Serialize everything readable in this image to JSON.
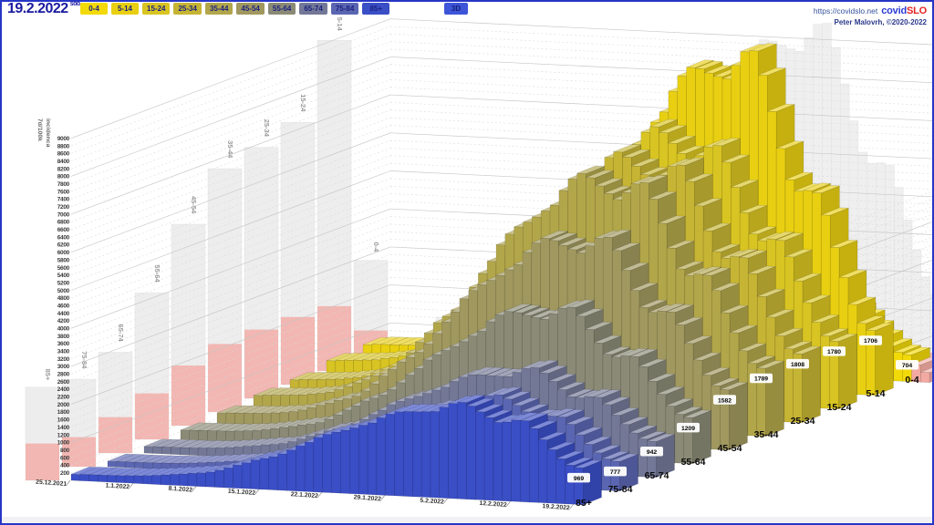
{
  "toolbar": {
    "date": "19.2.2022",
    "weekday": "sob",
    "mode_button": "3D"
  },
  "header_right": {
    "url": "https://covidslo.net",
    "brand_covid": "covid",
    "brand_slo": "SLO",
    "credit": "Peter Malovrh, ©2020-2022"
  },
  "chart_data": {
    "type": "bar",
    "projection": "3d",
    "y_axis": {
      "title_1": "7d/100k",
      "title_2": "incidenca",
      "min": 200,
      "max": 9000,
      "step": 200
    },
    "x_axis": {
      "dates": [
        "25.12.2021",
        "1.1.2022",
        "8.1.2022",
        "15.1.2022",
        "22.1.2022",
        "29.1.2022",
        "5.2.2022",
        "12.2.2022",
        "19.2.2022"
      ]
    },
    "days": 57,
    "series": [
      {
        "label": "0-4",
        "color": "#F2D908",
        "weekly_values": [
          250,
          300,
          500,
          900,
          1600,
          2300,
          2550,
          1800,
          704
        ],
        "last_value": 704
      },
      {
        "label": "5-14",
        "color": "#E8CF12",
        "weekly_values": [
          680,
          800,
          1400,
          3100,
          5700,
          8000,
          8700,
          5200,
          1706
        ],
        "last_value": 1706
      },
      {
        "label": "15-24",
        "color": "#D8C422",
        "weekly_values": [
          620,
          780,
          1450,
          3200,
          5400,
          6900,
          6600,
          4300,
          1780
        ],
        "last_value": 1780
      },
      {
        "label": "25-34",
        "color": "#C6B434",
        "weekly_values": [
          480,
          620,
          1250,
          2900,
          5100,
          6600,
          6450,
          4200,
          1808
        ],
        "last_value": 1808
      },
      {
        "label": "35-44",
        "color": "#B2A64A",
        "weekly_values": [
          430,
          560,
          1150,
          2700,
          4900,
          6400,
          6350,
          4100,
          1789
        ],
        "last_value": 1789
      },
      {
        "label": "45-54",
        "color": "#A0985E",
        "weekly_values": [
          330,
          420,
          850,
          2000,
          3800,
          5100,
          5300,
          3500,
          1582
        ],
        "last_value": 1582
      },
      {
        "label": "55-64",
        "color": "#8A8A76",
        "weekly_values": [
          240,
          300,
          550,
          1300,
          2500,
          3600,
          3850,
          2700,
          1209
        ],
        "last_value": 1209
      },
      {
        "label": "65-74",
        "color": "#737897",
        "weekly_values": [
          170,
          210,
          380,
          850,
          1650,
          2350,
          2650,
          2000,
          942
        ],
        "last_value": 942
      },
      {
        "label": "75-84",
        "color": "#5B66B2",
        "weekly_values": [
          140,
          170,
          300,
          650,
          1250,
          1850,
          2300,
          1850,
          777
        ],
        "last_value": 777
      },
      {
        "label": "85+",
        "color": "#3A4EC6",
        "weekly_values": [
          160,
          200,
          350,
          800,
          1500,
          2100,
          2450,
          2100,
          969
        ],
        "last_value": 969
      }
    ],
    "highlight": {
      "color": "#F2A9A2",
      "extra_day_values": [
        450,
        260
      ]
    }
  }
}
